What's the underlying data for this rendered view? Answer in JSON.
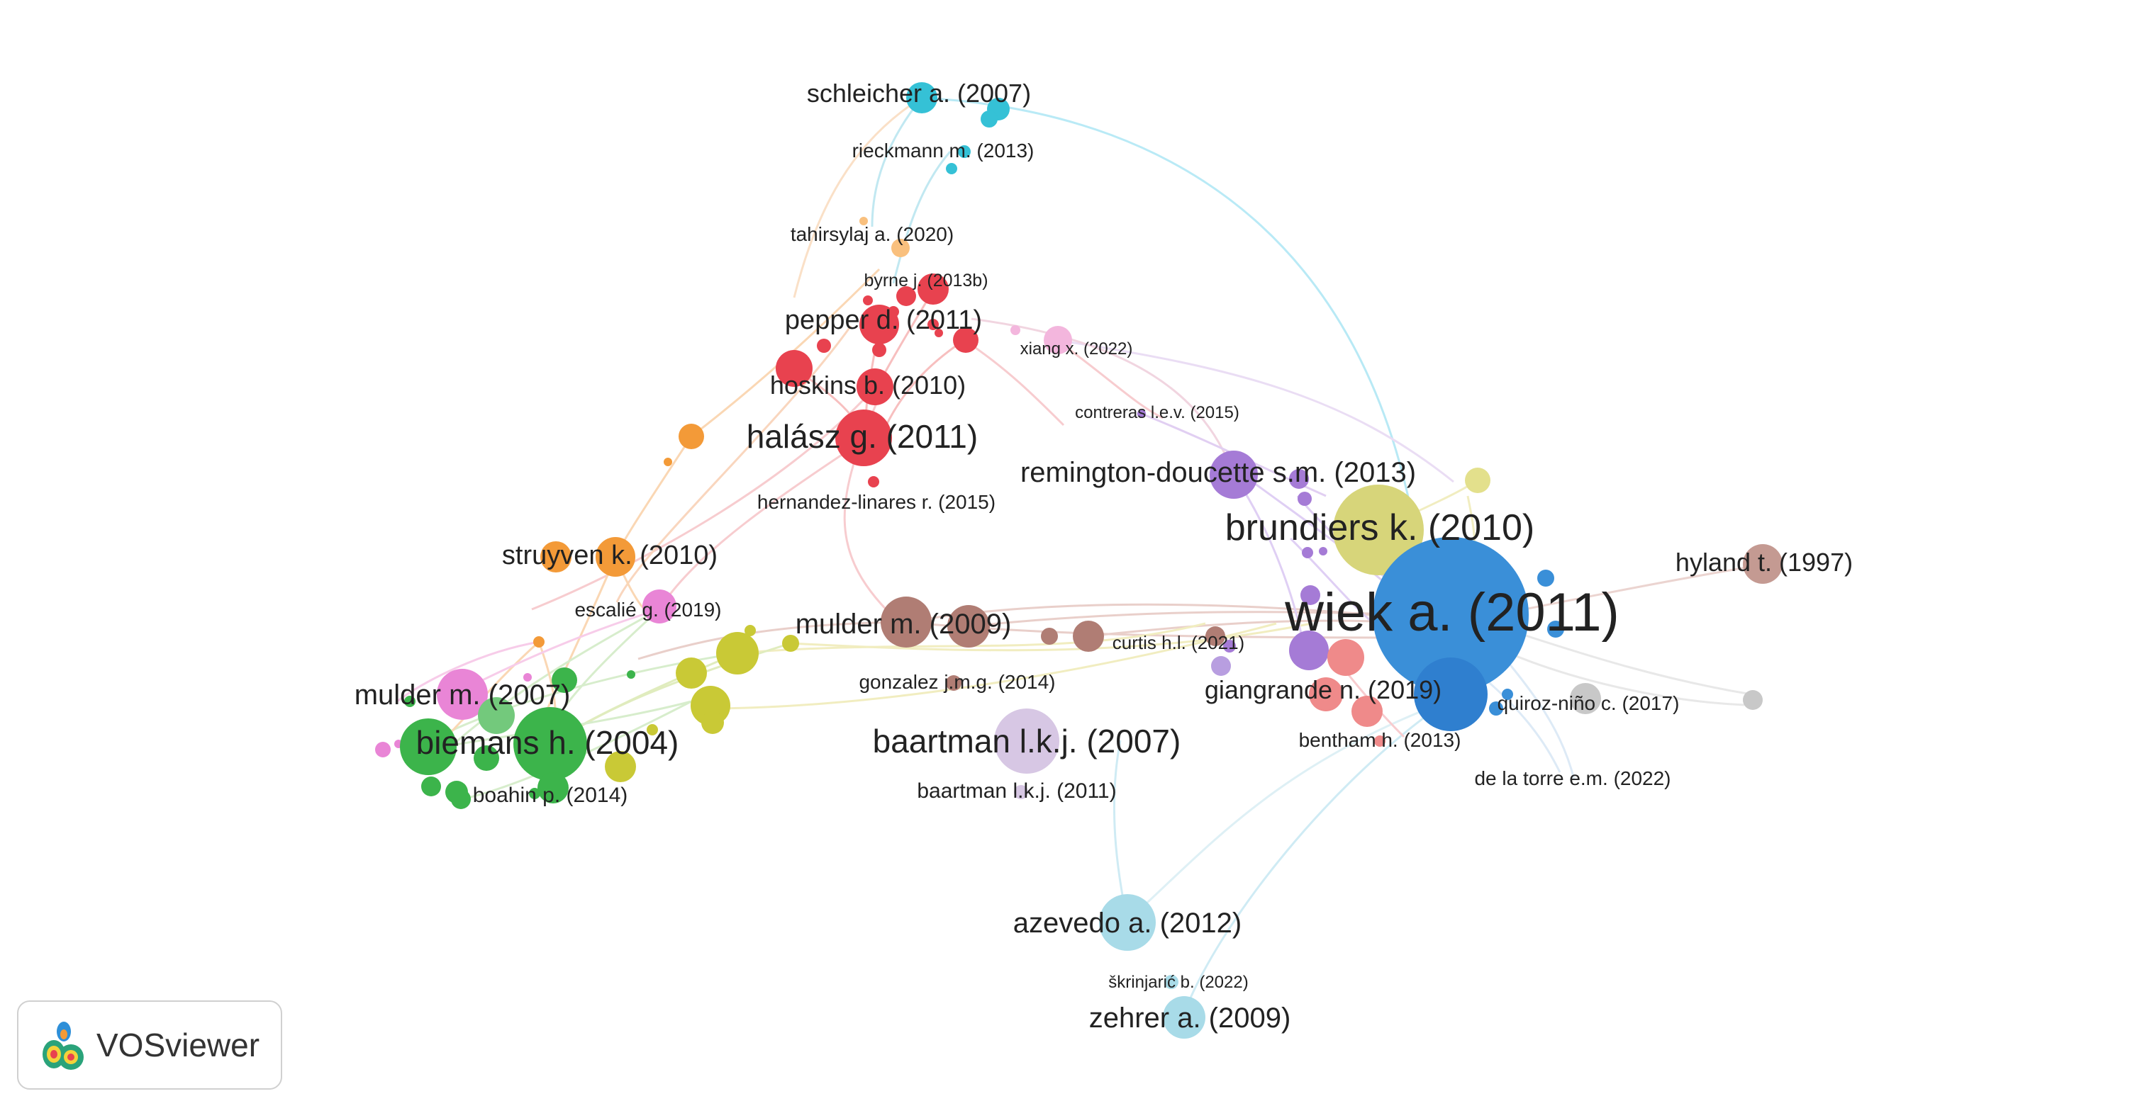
{
  "app": {
    "logo_label": "VOSviewer"
  },
  "colors": {
    "red": "#e8424f",
    "green": "#3cb44b",
    "blue": "#3a8fd8",
    "yellow": "#c9c936",
    "purple": "#a57bd6",
    "cyan": "#35c1d6",
    "orange": "#f39a38",
    "brown": "#b07d74",
    "pink": "#e985d6",
    "light_blue": "#a8dbe8",
    "light_purple": "#d7c7e4",
    "salmon": "#ef8a8a",
    "gray": "#c8c8c8",
    "light_yellow": "#e3e08c"
  },
  "labels": {
    "schleicher": "schleicher a. (2007)",
    "rieckmann": "rieckmann m. (2013)",
    "tahirsylaj": "tahirsylaj a. (2020)",
    "byrne": "byrne j. (2013b)",
    "pepper": "pepper d. (2011)",
    "xiang": "xiang x. (2022)",
    "hoskins": "hoskins b. (2010)",
    "contreras": "contreras l.e.v. (2015)",
    "halasz": "halász g. (2011)",
    "remington": "remington-doucette s.m. (2013)",
    "hernandez": "hernandez-linares r. (2015)",
    "brundiers": "brundiers k. (2010)",
    "hyland": "hyland t. (1997)",
    "struyven": "struyven k. (2010)",
    "wiek": "wiek a. (2011)",
    "escalie": "escalié g. (2019)",
    "mulder2009": "mulder m. (2009)",
    "curtis": "curtis h.l. (2021)",
    "gonzalez": "gonzalez j.m.g. (2014)",
    "giangrande": "giangrande n. (2019)",
    "mulder2007": "mulder m. (2007)",
    "quiroz": "quiroz-niño c. (2017)",
    "baartman2007": "baartman l.k.j. (2007)",
    "biemans": "biemans h. (2004)",
    "bentham": "bentham h. (2013)",
    "delatorre": "de la torre e.m. (2022)",
    "baartman2011": "baartman l.k.j. (2011)",
    "boahin": "boahin p. (2014)",
    "azevedo": "azevedo a. (2012)",
    "skrinjaric": "škrinjarić b. (2022)",
    "zehrer": "zehrer a. (2009)"
  }
}
